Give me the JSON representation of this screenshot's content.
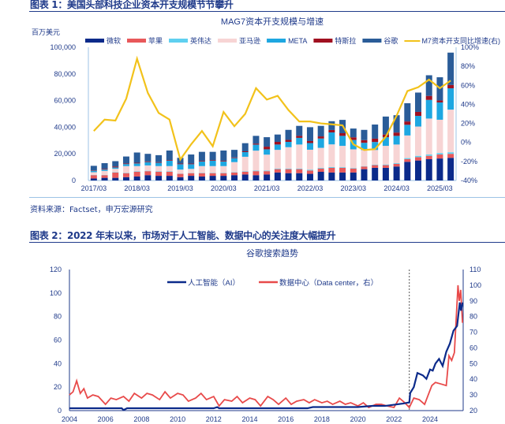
{
  "figure1": {
    "title": "图表 1：美国头部科技企业资本开支规模节节攀升",
    "source": "资料来源：Factset，申万宏源研究"
  },
  "figure2": {
    "title": "图表 2：2022 年末以来，市场对于人工智能、数据中心的关注度大幅提升"
  },
  "chart_data": [
    {
      "type": "bar",
      "stacked": true,
      "title": "MAG7资本开支规模与增速",
      "ylabel": "百万美元",
      "ylim": [
        0,
        100000
      ],
      "y2lim": [
        -40,
        100
      ],
      "yticks": [
        "0",
        "20,000",
        "40,000",
        "60,000",
        "80,000",
        "100,000"
      ],
      "y2ticks": [
        "-40%",
        "-20%",
        "0%",
        "20%",
        "40%",
        "60%",
        "80%",
        "100%"
      ],
      "xticklabels": [
        "2017/03",
        "2018/03",
        "2019/03",
        "2020/03",
        "2021/03",
        "2022/03",
        "2023/03",
        "2024/03",
        "2025/03"
      ],
      "categories_start": "2017Q1",
      "categories_end": "2025Q2",
      "unit": "thousand USD mn",
      "colors": {
        "微软": "#0b2a8a",
        "苹果": "#e8585a",
        "英伟达": "#5fd0f0",
        "亚马逊": "#f7d4d4",
        "META": "#1ea7e1",
        "特斯拉": "#a01020",
        "谷歌": "#2a5c98",
        "M7资本开支同比增速(右)": "#f2c21b"
      },
      "series": [
        {
          "name": "微软",
          "values": [
            1.5,
            2,
            2,
            2.5,
            3,
            4,
            3.5,
            3.5,
            2.5,
            3.5,
            3,
            3.5,
            3.5,
            4,
            4.5,
            4,
            4.5,
            6,
            5.5,
            5.5,
            5,
            6.5,
            6,
            6,
            6,
            8.5,
            9.5,
            9.5,
            10.5,
            14,
            15,
            16,
            16.5,
            17
          ]
        },
        {
          "name": "苹果",
          "values": [
            2.5,
            2,
            4,
            3,
            3.5,
            3,
            3,
            3,
            2.5,
            2,
            2.5,
            2,
            2,
            2,
            2,
            3,
            2.5,
            2.5,
            3,
            3,
            2.5,
            2.5,
            3.5,
            3.5,
            3,
            2,
            2,
            2,
            2,
            2,
            2.5,
            2.5,
            3,
            3
          ]
        },
        {
          "name": "英伟达",
          "values": [
            0.2,
            0.2,
            0.3,
            0.3,
            0.3,
            0.3,
            0.3,
            0.3,
            0.2,
            0.2,
            0.3,
            0.3,
            0.3,
            0.3,
            0.3,
            0.4,
            0.4,
            0.5,
            0.5,
            0.5,
            0.6,
            0.5,
            0.6,
            0.5,
            0.4,
            0.3,
            0.4,
            0.5,
            0.5,
            0.8,
            1,
            1,
            1.1,
            1.2
          ]
        },
        {
          "name": "亚马逊",
          "values": [
            2,
            3,
            2.5,
            5,
            4,
            4,
            4,
            4,
            3,
            3,
            5,
            5,
            5,
            7.5,
            11,
            15,
            12,
            14,
            16,
            18,
            15,
            15,
            17,
            16,
            14,
            12,
            11,
            14,
            14,
            17,
            22,
            27,
            25,
            32
          ]
        },
        {
          "name": "META",
          "values": [
            1,
            1,
            1,
            1.5,
            2,
            2.5,
            2.5,
            4,
            4,
            3.5,
            3.5,
            4,
            3.5,
            3,
            3.5,
            4.5,
            4,
            4,
            4,
            5,
            5,
            7,
            9,
            7.5,
            7,
            5.5,
            6,
            6.5,
            6.5,
            8,
            8,
            14,
            13,
            16
          ]
        },
        {
          "name": "特斯拉",
          "values": [
            0.3,
            0.5,
            0.7,
            0.5,
            0.5,
            0.5,
            0.5,
            0.5,
            0.5,
            0.5,
            0.5,
            0.5,
            0.5,
            0.5,
            0.6,
            0.8,
            2,
            2,
            1.5,
            1.5,
            1.5,
            1.6,
            1.8,
            2,
            2,
            2,
            2.5,
            2,
            2.5,
            2.5,
            3,
            3,
            1.5,
            2.5
          ]
        },
        {
          "name": "谷歌",
          "values": [
            3.5,
            4.3,
            4,
            5.2,
            7.7,
            5.7,
            5.2,
            7.2,
            4.3,
            6.8,
            6.7,
            6.2,
            7.7,
            5.7,
            6.1,
            5.8,
            7.1,
            5.5,
            7.5,
            7.5,
            10.4,
            7.9,
            6.6,
            10,
            6.6,
            7.7,
            10.6,
            13.5,
            13,
            13.7,
            14.5,
            15.5,
            17.4,
            24.3
          ]
        }
      ],
      "line": {
        "name": "M7资本开支同比增速(右)",
        "values": [
          12,
          24,
          23,
          46,
          88,
          52,
          31,
          24,
          -18,
          -2,
          12,
          -4,
          32,
          17,
          30,
          57,
          45,
          49,
          34,
          22,
          22,
          20,
          19,
          18,
          -2,
          -8,
          -7,
          6,
          28,
          54,
          58,
          66,
          57,
          65
        ]
      }
    },
    {
      "type": "line",
      "title": "谷歌搜索趋势",
      "ylim": [
        0,
        120
      ],
      "y2lim": [
        20,
        110
      ],
      "yticks": [
        "0",
        "20",
        "40",
        "60",
        "80",
        "100",
        "120"
      ],
      "y2ticks": [
        "20",
        "30",
        "40",
        "50",
        "60",
        "70",
        "80",
        "90",
        "100",
        "110"
      ],
      "xticks": [
        "2004",
        "2006",
        "2008",
        "2010",
        "2012",
        "2014",
        "2016",
        "2018",
        "2020",
        "2022",
        "2024"
      ],
      "annotation": "vertical dashed line at 2022-11",
      "series": [
        {
          "name": "人工智能（AI）",
          "axis": "left",
          "color": "#0b2a8a",
          "x": [
            2004,
            2006.9,
            2007.0,
            2007.2,
            2012,
            2012.2,
            2012.3,
            2017.2,
            2017.5,
            2018,
            2020,
            2020.8,
            2021.5,
            2022,
            2022.5,
            2022.85,
            2022.9,
            2023.1,
            2023.3,
            2023.6,
            2023.8,
            2024.0,
            2024.15,
            2024.3,
            2024.5,
            2024.7,
            2024.9,
            2025.1,
            2025.3,
            2025.5,
            2025.65,
            2025.72,
            2025.8
          ],
          "y": [
            2,
            2,
            0.5,
            2,
            2,
            3,
            2,
            2,
            3,
            3,
            3,
            4,
            4,
            5,
            6,
            7,
            15,
            20,
            32,
            30,
            27,
            35,
            34,
            40,
            44,
            38,
            50,
            57,
            68,
            72,
            92,
            85,
            92
          ]
        },
        {
          "name": "数据中心（Data center，右）",
          "axis": "right",
          "color": "#e84a4a",
          "x": [
            2004,
            2004.2,
            2004.4,
            2004.6,
            2004.8,
            2005,
            2005.3,
            2005.6,
            2006,
            2006.3,
            2006.6,
            2007,
            2007.3,
            2007.6,
            2008,
            2008.3,
            2008.6,
            2009,
            2009.3,
            2009.6,
            2010,
            2010.3,
            2010.6,
            2011,
            2011.3,
            2011.6,
            2012,
            2012.3,
            2012.6,
            2013,
            2013.3,
            2013.6,
            2014,
            2014.3,
            2014.6,
            2015,
            2015.3,
            2015.6,
            2016,
            2016.3,
            2016.6,
            2017,
            2017.3,
            2017.6,
            2018,
            2018.3,
            2018.6,
            2019,
            2019.3,
            2019.6,
            2020,
            2020.3,
            2020.6,
            2021,
            2021.3,
            2021.6,
            2022,
            2022.3,
            2022.6,
            2022.85,
            2023.1,
            2023.4,
            2023.7,
            2023.9,
            2024.1,
            2024.3,
            2024.6,
            2024.9,
            2025.05,
            2025.2,
            2025.35,
            2025.55,
            2025.62,
            2025.7,
            2025.8
          ],
          "y": [
            30,
            32,
            39,
            31,
            34,
            28,
            30,
            29,
            24,
            28,
            27,
            29,
            26,
            31,
            28,
            31,
            30,
            27,
            32,
            28,
            31,
            30,
            26,
            28,
            31,
            27,
            29,
            23,
            27,
            26,
            29,
            25,
            28,
            27,
            23,
            29,
            27,
            24,
            28,
            24,
            26,
            27,
            25,
            27,
            25,
            26,
            24,
            26,
            24,
            25,
            23,
            25,
            22,
            24,
            24,
            23,
            22,
            28,
            25,
            22,
            28,
            27,
            24,
            30,
            36,
            38,
            37,
            36,
            55,
            52,
            57,
            100,
            90,
            97,
            76
          ]
        }
      ]
    }
  ]
}
